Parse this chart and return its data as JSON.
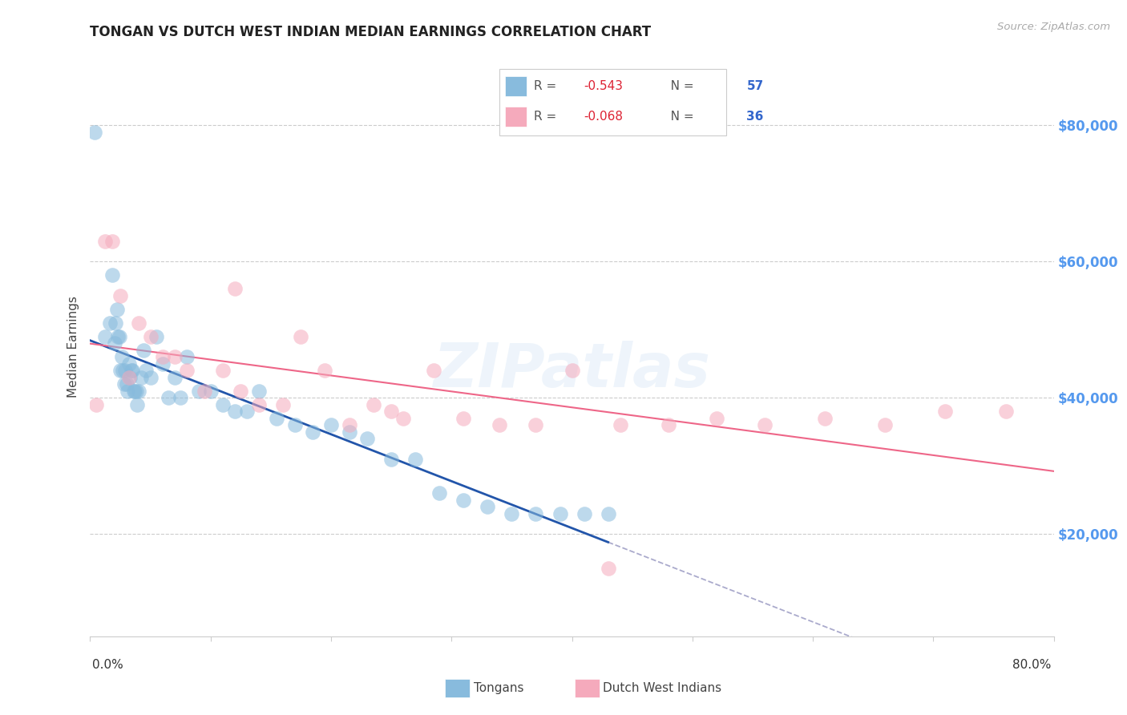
{
  "title": "TONGAN VS DUTCH WEST INDIAN MEDIAN EARNINGS CORRELATION CHART",
  "source": "Source: ZipAtlas.com",
  "ylabel": "Median Earnings",
  "yticks": [
    20000,
    40000,
    60000,
    80000
  ],
  "ytick_labels": [
    "$20,000",
    "$40,000",
    "$60,000",
    "$80,000"
  ],
  "ylim": [
    5000,
    90000
  ],
  "xlim": [
    0.0,
    0.8
  ],
  "blue_color": "#88BBDD",
  "pink_color": "#F5AABC",
  "blue_line_color": "#2255AA",
  "pink_line_color": "#EE6688",
  "right_axis_color": "#5599EE",
  "background_color": "#FFFFFF",
  "tongan_x": [
    0.004,
    0.012,
    0.016,
    0.018,
    0.02,
    0.021,
    0.022,
    0.023,
    0.024,
    0.025,
    0.026,
    0.027,
    0.028,
    0.029,
    0.03,
    0.031,
    0.032,
    0.033,
    0.034,
    0.035,
    0.036,
    0.037,
    0.038,
    0.039,
    0.04,
    0.042,
    0.044,
    0.046,
    0.05,
    0.055,
    0.06,
    0.065,
    0.07,
    0.075,
    0.08,
    0.09,
    0.1,
    0.11,
    0.12,
    0.13,
    0.14,
    0.155,
    0.17,
    0.185,
    0.2,
    0.215,
    0.23,
    0.25,
    0.27,
    0.29,
    0.31,
    0.33,
    0.35,
    0.37,
    0.39,
    0.41,
    0.43
  ],
  "tongan_y": [
    79000,
    49000,
    51000,
    58000,
    48000,
    51000,
    53000,
    49000,
    49000,
    44000,
    46000,
    44000,
    42000,
    44000,
    42000,
    41000,
    45000,
    43000,
    44000,
    44000,
    41000,
    41000,
    41000,
    39000,
    41000,
    43000,
    47000,
    44000,
    43000,
    49000,
    45000,
    40000,
    43000,
    40000,
    46000,
    41000,
    41000,
    39000,
    38000,
    38000,
    41000,
    37000,
    36000,
    35000,
    36000,
    35000,
    34000,
    31000,
    31000,
    26000,
    25000,
    24000,
    23000,
    23000,
    23000,
    23000,
    23000
  ],
  "dutch_x": [
    0.005,
    0.012,
    0.018,
    0.025,
    0.032,
    0.04,
    0.05,
    0.06,
    0.07,
    0.08,
    0.095,
    0.11,
    0.125,
    0.14,
    0.16,
    0.175,
    0.195,
    0.215,
    0.235,
    0.26,
    0.285,
    0.31,
    0.34,
    0.37,
    0.4,
    0.44,
    0.48,
    0.52,
    0.56,
    0.61,
    0.66,
    0.71,
    0.76,
    0.43,
    0.25,
    0.12
  ],
  "dutch_y": [
    39000,
    63000,
    63000,
    55000,
    43000,
    51000,
    49000,
    46000,
    46000,
    44000,
    41000,
    44000,
    41000,
    39000,
    39000,
    49000,
    44000,
    36000,
    39000,
    37000,
    44000,
    37000,
    36000,
    36000,
    44000,
    36000,
    36000,
    37000,
    36000,
    37000,
    36000,
    38000,
    38000,
    15000,
    38000,
    56000
  ]
}
